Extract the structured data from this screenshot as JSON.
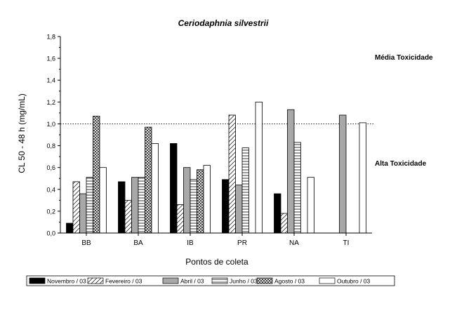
{
  "chart_data": {
    "type": "bar",
    "title": "Ceriodaphnia silvestrii",
    "xlabel": "Pontos de coleta",
    "ylabel": "CL 50 - 48 h (mg/mL)",
    "ylim": [
      0,
      1.8
    ],
    "yticks": [
      "0,0",
      "0,2",
      "0,4",
      "0,6",
      "0,8",
      "1,0",
      "1,2",
      "1,4",
      "1,6",
      "1,8"
    ],
    "categories": [
      "BB",
      "BA",
      "IB",
      "PR",
      "NA",
      "TI"
    ],
    "series": [
      {
        "name": "Novembro / 03",
        "pattern": "solid-black",
        "values": [
          0.09,
          0.47,
          0.82,
          0.49,
          0.36,
          null
        ]
      },
      {
        "name": "Fevereiro / 03",
        "pattern": "diagonal",
        "values": [
          0.47,
          0.3,
          0.26,
          1.08,
          0.18,
          null
        ]
      },
      {
        "name": "Abril / 03",
        "pattern": "solid-gray",
        "values": [
          0.36,
          0.51,
          0.6,
          0.44,
          1.13,
          1.08
        ]
      },
      {
        "name": "Junho / 03",
        "pattern": "horizontal",
        "values": [
          0.51,
          0.51,
          0.49,
          0.78,
          0.83,
          null
        ]
      },
      {
        "name": "Agosto / 03",
        "pattern": "crosshatch",
        "values": [
          1.07,
          0.97,
          0.58,
          null,
          null,
          null
        ]
      },
      {
        "name": "Outubro / 03",
        "pattern": "white",
        "values": [
          0.6,
          0.82,
          0.62,
          1.2,
          0.51,
          1.01
        ]
      }
    ],
    "reference_line": {
      "value": 1.0,
      "style": "dotted"
    },
    "annotations": [
      "Média Toxicidade",
      "Alta Toxicidade"
    ],
    "legend": "bottom",
    "grid": false
  }
}
